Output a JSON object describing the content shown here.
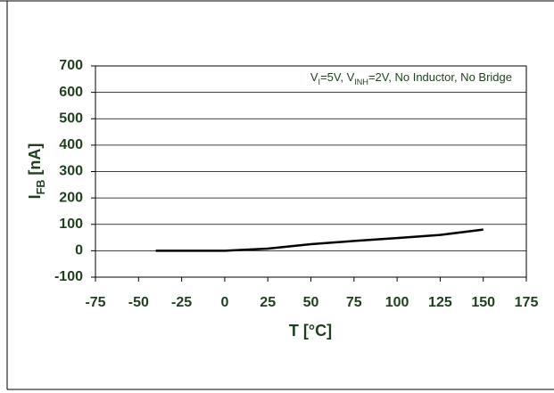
{
  "chart_data": {
    "type": "line",
    "xlabel": "T [°C]",
    "ylabel": [
      {
        "text": "I"
      },
      {
        "text": "FB",
        "sub": true
      },
      {
        "text": " [nA]"
      }
    ],
    "annotation": [
      {
        "text": "V"
      },
      {
        "text": "I",
        "sub": true
      },
      {
        "text": "=5V, V"
      },
      {
        "text": "INH",
        "sub": true
      },
      {
        "text": "=2V, No Inductor, No Bridge"
      }
    ],
    "x": [
      -40,
      0,
      25,
      50,
      75,
      100,
      125,
      150
    ],
    "series": [
      {
        "color": "#000000",
        "values": [
          0,
          0,
          8,
          25,
          37,
          48,
          60,
          80
        ]
      }
    ],
    "xlim": [
      -75,
      175
    ],
    "xticks": [
      -75,
      -50,
      -25,
      0,
      25,
      50,
      75,
      100,
      125,
      150,
      175
    ],
    "ylim": [
      -100,
      700
    ],
    "yticks": [
      -100,
      0,
      100,
      200,
      300,
      400,
      500,
      600,
      700
    ],
    "grid": true
  }
}
